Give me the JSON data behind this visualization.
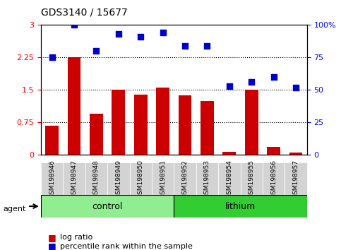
{
  "title": "GDS3140 / 15677",
  "samples": [
    "GSM198946",
    "GSM198947",
    "GSM198948",
    "GSM198949",
    "GSM198950",
    "GSM198951",
    "GSM198952",
    "GSM198953",
    "GSM198954",
    "GSM198955",
    "GSM198956",
    "GSM198957"
  ],
  "log_ratio": [
    0.68,
    2.25,
    0.95,
    1.5,
    1.4,
    1.55,
    1.38,
    1.25,
    0.08,
    1.5,
    0.18,
    0.05
  ],
  "percentile_rank": [
    75,
    100,
    80,
    93,
    91,
    94,
    84,
    84,
    53,
    56,
    60,
    52
  ],
  "groups": [
    {
      "label": "control",
      "start": 0,
      "end": 6,
      "color": "#90ee90"
    },
    {
      "label": "lithium",
      "start": 6,
      "end": 12,
      "color": "#32cd32"
    }
  ],
  "bar_color": "#cc0000",
  "dot_color": "#0000cc",
  "ylim_left": [
    0,
    3
  ],
  "ylim_right": [
    0,
    100
  ],
  "yticks_left": [
    0,
    0.75,
    1.5,
    2.25,
    3
  ],
  "yticks_right": [
    0,
    25,
    50,
    75,
    100
  ],
  "ytick_labels_left": [
    "0",
    "0.75",
    "1.5",
    "2.25",
    "3"
  ],
  "ytick_labels_right": [
    "0",
    "25",
    "50",
    "75",
    "100%"
  ],
  "hlines": [
    0.75,
    1.5,
    2.25
  ],
  "agent_label": "agent",
  "legend": [
    {
      "color": "#cc0000",
      "label": "log ratio"
    },
    {
      "color": "#0000cc",
      "label": "percentile rank within the sample"
    }
  ],
  "background_color": "#f0f0f0",
  "plot_bg": "#ffffff"
}
